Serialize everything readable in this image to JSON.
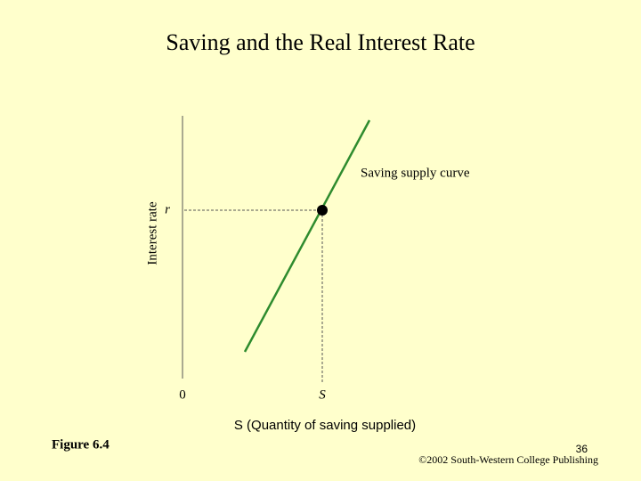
{
  "header": {
    "title": "Saving and the Real Interest Rate"
  },
  "diagram": {
    "y_axis_label": "Interest rate",
    "y_marker": "r",
    "origin": "0",
    "x_marker": "S",
    "x_axis_label": "S (Quantity of saving supplied)",
    "curve_label": "Saving supply curve"
  },
  "footer": {
    "figure": "Figure 6.4",
    "page": "36",
    "copyright": "©2002 South-Western College Publishing"
  }
}
